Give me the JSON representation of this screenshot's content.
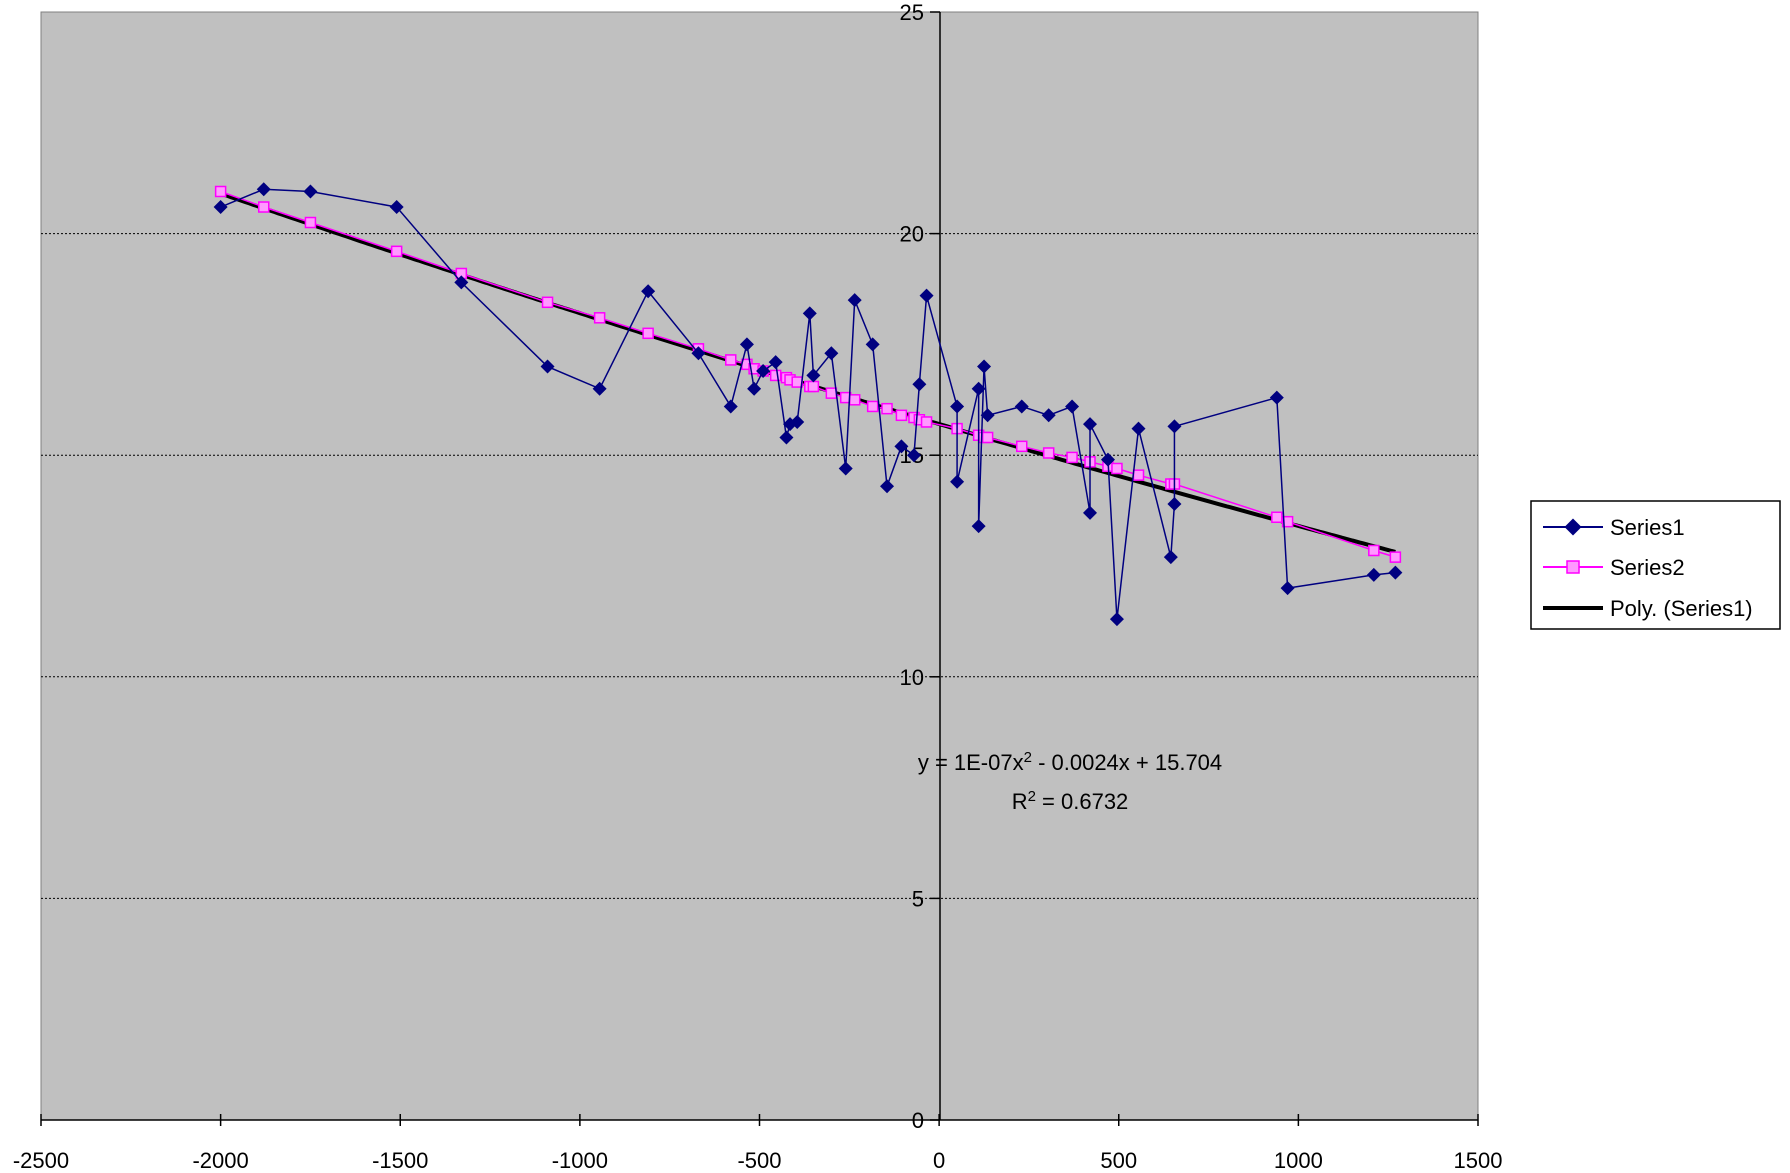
{
  "chart_data": {
    "type": "scatter",
    "xlim": [
      -2500,
      1500
    ],
    "ylim": [
      0,
      25
    ],
    "x_ticks": [
      -2500,
      -2000,
      -1500,
      -1000,
      -500,
      0,
      500,
      1000,
      1500
    ],
    "y_ticks": [
      0,
      5,
      10,
      15,
      20,
      25
    ],
    "grid": "horizontal dotted",
    "legend_position": "right",
    "colors": {
      "plot_background": "#c0c0c0",
      "series1": "#000080",
      "series2": "#ff00ff",
      "trend": "#000000",
      "grid": "#000000"
    },
    "series": [
      {
        "name": "Series1",
        "marker": "diamond",
        "points": [
          [
            -2000,
            20.6
          ],
          [
            -1880,
            21.0
          ],
          [
            -1750,
            20.95
          ],
          [
            -1510,
            20.6
          ],
          [
            -1330,
            18.9
          ],
          [
            -1090,
            17.0
          ],
          [
            -945,
            16.5
          ],
          [
            -810,
            18.7
          ],
          [
            -670,
            17.3
          ],
          [
            -580,
            16.1
          ],
          [
            -535,
            17.5
          ],
          [
            -515,
            16.5
          ],
          [
            -490,
            16.9
          ],
          [
            -455,
            17.1
          ],
          [
            -425,
            15.4
          ],
          [
            -415,
            15.7
          ],
          [
            -395,
            15.75
          ],
          [
            -360,
            18.2
          ],
          [
            -350,
            16.8
          ],
          [
            -300,
            17.3
          ],
          [
            -260,
            14.7
          ],
          [
            -235,
            18.5
          ],
          [
            -185,
            17.5
          ],
          [
            -145,
            14.3
          ],
          [
            -105,
            15.2
          ],
          [
            -70,
            15.0
          ],
          [
            -55,
            16.6
          ],
          [
            -35,
            18.6
          ],
          [
            50,
            16.1
          ],
          [
            50,
            14.4
          ],
          [
            110,
            16.5
          ],
          [
            110,
            13.4
          ],
          [
            125,
            17.0
          ],
          [
            135,
            15.9
          ],
          [
            230,
            16.1
          ],
          [
            305,
            15.9
          ],
          [
            370,
            16.1
          ],
          [
            420,
            13.7
          ],
          [
            420,
            15.7
          ],
          [
            470,
            14.9
          ],
          [
            495,
            11.3
          ],
          [
            555,
            15.6
          ],
          [
            645,
            12.7
          ],
          [
            655,
            13.9
          ],
          [
            655,
            15.65
          ],
          [
            940,
            16.3
          ],
          [
            970,
            12.0
          ],
          [
            1210,
            12.3
          ],
          [
            1270,
            12.35
          ]
        ]
      },
      {
        "name": "Series2",
        "marker": "square",
        "points": [
          [
            -2000,
            20.95
          ],
          [
            -1880,
            20.6
          ],
          [
            -1750,
            20.25
          ],
          [
            -1510,
            19.6
          ],
          [
            -1330,
            19.1
          ],
          [
            -1090,
            18.45
          ],
          [
            -945,
            18.1
          ],
          [
            -810,
            17.75
          ],
          [
            -670,
            17.4
          ],
          [
            -580,
            17.15
          ],
          [
            -535,
            17.05
          ],
          [
            -515,
            16.95
          ],
          [
            -490,
            16.9
          ],
          [
            -455,
            16.8
          ],
          [
            -425,
            16.75
          ],
          [
            -415,
            16.7
          ],
          [
            -395,
            16.65
          ],
          [
            -360,
            16.55
          ],
          [
            -350,
            16.55
          ],
          [
            -300,
            16.4
          ],
          [
            -260,
            16.3
          ],
          [
            -235,
            16.25
          ],
          [
            -185,
            16.1
          ],
          [
            -145,
            16.05
          ],
          [
            -105,
            15.9
          ],
          [
            -70,
            15.85
          ],
          [
            -55,
            15.8
          ],
          [
            -35,
            15.75
          ],
          [
            50,
            15.6
          ],
          [
            110,
            15.45
          ],
          [
            125,
            15.4
          ],
          [
            135,
            15.4
          ],
          [
            230,
            15.2
          ],
          [
            305,
            15.05
          ],
          [
            370,
            14.95
          ],
          [
            420,
            14.85
          ],
          [
            470,
            14.75
          ],
          [
            495,
            14.7
          ],
          [
            555,
            14.55
          ],
          [
            645,
            14.35
          ],
          [
            655,
            14.35
          ],
          [
            940,
            13.6
          ],
          [
            970,
            13.5
          ],
          [
            1210,
            12.85
          ],
          [
            1270,
            12.7
          ]
        ]
      },
      {
        "name": "Poly. (Series1)",
        "type": "trendline",
        "fit": "polynomial order 2"
      }
    ],
    "annotation": {
      "equation_prefix": "y = 1E-07x",
      "equation_exp": "2",
      "equation_suffix": " - 0.0024x + 15.704",
      "r2_prefix": "R",
      "r2_exp": "2",
      "r2_suffix": " = 0.6732",
      "coef_a": 1e-07,
      "coef_b": -0.0024,
      "coef_c": 15.704
    }
  }
}
